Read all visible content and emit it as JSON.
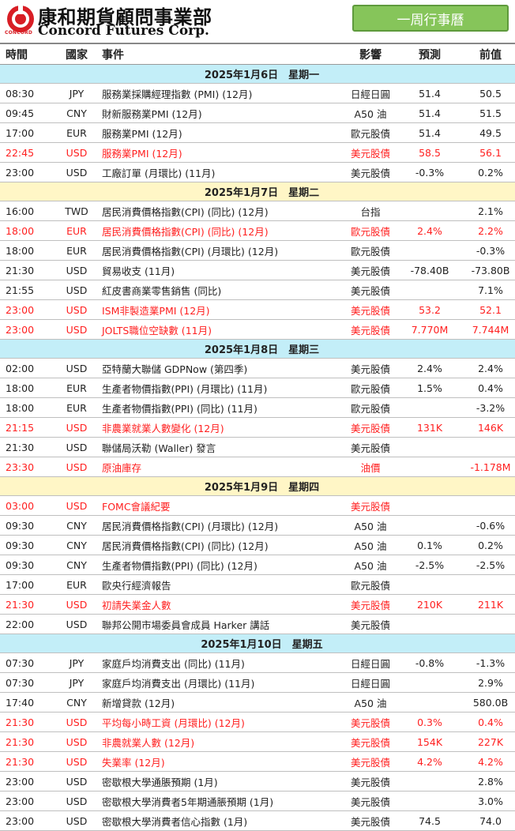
{
  "header": {
    "logo_small": "CONCORD",
    "company_cn": "康和期貨顧問事業部",
    "company_en": "Concord Futures Corp.",
    "weekly_label": "一周行事曆"
  },
  "columns": [
    "時間",
    "國家",
    "事件",
    "影響",
    "預測",
    "前值"
  ],
  "days": [
    {
      "date": "2025年1月6日　星期一",
      "style": "blue",
      "rows": [
        {
          "time": "08:30",
          "country": "JPY",
          "event": "服務業採購經理指數 (PMI) (12月)",
          "impact": "日經日圓",
          "forecast": "51.4",
          "previous": "50.5",
          "highlight": false
        },
        {
          "time": "09:45",
          "country": "CNY",
          "event": "財新服務業PMI (12月)",
          "impact": "A50 油",
          "forecast": "51.4",
          "previous": "51.5",
          "highlight": false
        },
        {
          "time": "17:00",
          "country": "EUR",
          "event": "服務業PMI (12月)",
          "impact": "歐元股債",
          "forecast": "51.4",
          "previous": "49.5",
          "highlight": false
        },
        {
          "time": "22:45",
          "country": "USD",
          "event": "服務業PMI (12月)",
          "impact": "美元股債",
          "forecast": "58.5",
          "previous": "56.1",
          "highlight": true
        },
        {
          "time": "23:00",
          "country": "USD",
          "event": "工廠訂單 (月環比) (11月)",
          "impact": "美元股債",
          "forecast": "-0.3%",
          "previous": "0.2%",
          "highlight": false
        }
      ]
    },
    {
      "date": "2025年1月7日　星期二",
      "style": "yellow",
      "rows": [
        {
          "time": "16:00",
          "country": "TWD",
          "event": "居民消費價格指數(CPI) (同比) (12月)",
          "impact": "台指",
          "forecast": "",
          "previous": "2.1%",
          "highlight": false
        },
        {
          "time": "18:00",
          "country": "EUR",
          "event": "居民消費價格指數(CPI) (同比) (12月)",
          "impact": "歐元股債",
          "forecast": "2.4%",
          "previous": "2.2%",
          "highlight": true
        },
        {
          "time": "18:00",
          "country": "EUR",
          "event": "居民消費價格指數(CPI) (月環比) (12月)",
          "impact": "歐元股債",
          "forecast": "",
          "previous": "-0.3%",
          "highlight": false
        },
        {
          "time": "21:30",
          "country": "USD",
          "event": "貿易收支 (11月)",
          "impact": "美元股債",
          "forecast": "-78.40B",
          "previous": "-73.80B",
          "highlight": false
        },
        {
          "time": "21:55",
          "country": "USD",
          "event": "紅皮書商業零售銷售 (同比)",
          "impact": "美元股債",
          "forecast": "",
          "previous": "7.1%",
          "highlight": false
        },
        {
          "time": "23:00",
          "country": "USD",
          "event": "ISM非製造業PMI (12月)",
          "impact": "美元股債",
          "forecast": "53.2",
          "previous": "52.1",
          "highlight": true
        },
        {
          "time": "23:00",
          "country": "USD",
          "event": "JOLTS職位空缺數 (11月)",
          "impact": "美元股債",
          "forecast": "7.770M",
          "previous": "7.744M",
          "highlight": true
        }
      ]
    },
    {
      "date": "2025年1月8日　星期三",
      "style": "blue",
      "rows": [
        {
          "time": "02:00",
          "country": "USD",
          "event": "亞特蘭大聯儲 GDPNow (第四季)",
          "impact": "美元股債",
          "forecast": "2.4%",
          "previous": "2.4%",
          "highlight": false
        },
        {
          "time": "18:00",
          "country": "EUR",
          "event": "生產者物價指數(PPI) (月環比) (11月)",
          "impact": "歐元股債",
          "forecast": "1.5%",
          "previous": "0.4%",
          "highlight": false
        },
        {
          "time": "18:00",
          "country": "EUR",
          "event": "生產者物價指數(PPI) (同比) (11月)",
          "impact": "歐元股債",
          "forecast": "",
          "previous": "-3.2%",
          "highlight": false
        },
        {
          "time": "21:15",
          "country": "USD",
          "event": "非農業就業人數變化 (12月)",
          "impact": "美元股債",
          "forecast": "131K",
          "previous": "146K",
          "highlight": true
        },
        {
          "time": "21:30",
          "country": "USD",
          "event": "聯儲局沃勒 (Waller) 發言",
          "impact": "美元股債",
          "forecast": "",
          "previous": "",
          "highlight": false
        },
        {
          "time": "23:30",
          "country": "USD",
          "event": "原油庫存",
          "impact": "油價",
          "forecast": "",
          "previous": "-1.178M",
          "highlight": true
        }
      ]
    },
    {
      "date": "2025年1月9日　星期四",
      "style": "yellow",
      "rows": [
        {
          "time": "03:00",
          "country": "USD",
          "event": "FOMC會議紀要",
          "impact": "美元股債",
          "forecast": "",
          "previous": "",
          "highlight": true
        },
        {
          "time": "09:30",
          "country": "CNY",
          "event": "居民消費價格指數(CPI) (月環比) (12月)",
          "impact": "A50 油",
          "forecast": "",
          "previous": "-0.6%",
          "highlight": false
        },
        {
          "time": "09:30",
          "country": "CNY",
          "event": "居民消費價格指數(CPI) (同比) (12月)",
          "impact": "A50 油",
          "forecast": "0.1%",
          "previous": "0.2%",
          "highlight": false
        },
        {
          "time": "09:30",
          "country": "CNY",
          "event": "生產者物價指數(PPI) (同比) (12月)",
          "impact": "A50 油",
          "forecast": "-2.5%",
          "previous": "-2.5%",
          "highlight": false
        },
        {
          "time": "17:00",
          "country": "EUR",
          "event": "歐央行經濟報告",
          "impact": "歐元股債",
          "forecast": "",
          "previous": "",
          "highlight": false
        },
        {
          "time": "21:30",
          "country": "USD",
          "event": "初請失業金人數",
          "impact": "美元股債",
          "forecast": "210K",
          "previous": "211K",
          "highlight": true
        },
        {
          "time": "22:00",
          "country": "USD",
          "event": "聯邦公開市場委員會成員 Harker 講話",
          "impact": "美元股債",
          "forecast": "",
          "previous": "",
          "highlight": false
        }
      ]
    },
    {
      "date": "2025年1月10日　星期五",
      "style": "blue",
      "rows": [
        {
          "time": "07:30",
          "country": "JPY",
          "event": "家庭戶均消費支出 (同比) (11月)",
          "impact": "日經日圓",
          "forecast": "-0.8%",
          "previous": "-1.3%",
          "highlight": false
        },
        {
          "time": "07:30",
          "country": "JPY",
          "event": "家庭戶均消費支出 (月環比) (11月)",
          "impact": "日經日圓",
          "forecast": "",
          "previous": "2.9%",
          "highlight": false
        },
        {
          "time": "17:40",
          "country": "CNY",
          "event": "新增貸款 (12月)",
          "impact": "A50 油",
          "forecast": "",
          "previous": "580.0B",
          "highlight": false
        },
        {
          "time": "21:30",
          "country": "USD",
          "event": "平均每小時工資 (月環比) (12月)",
          "impact": "美元股債",
          "forecast": "0.3%",
          "previous": "0.4%",
          "highlight": true
        },
        {
          "time": "21:30",
          "country": "USD",
          "event": "非農就業人數 (12月)",
          "impact": "美元股債",
          "forecast": "154K",
          "previous": "227K",
          "highlight": true
        },
        {
          "time": "21:30",
          "country": "USD",
          "event": "失業率 (12月)",
          "impact": "美元股債",
          "forecast": "4.2%",
          "previous": "4.2%",
          "highlight": true
        },
        {
          "time": "23:00",
          "country": "USD",
          "event": "密歇根大學通脹預期 (1月)",
          "impact": "美元股債",
          "forecast": "",
          "previous": "2.8%",
          "highlight": false
        },
        {
          "time": "23:00",
          "country": "USD",
          "event": "密歇根大學消費者5年期通脹預期 (1月)",
          "impact": "美元股債",
          "forecast": "",
          "previous": "3.0%",
          "highlight": false
        },
        {
          "time": "23:00",
          "country": "USD",
          "event": "密歇根大學消費者信心指數 (1月)",
          "impact": "美元股債",
          "forecast": "74.5",
          "previous": "74.0",
          "highlight": false
        }
      ]
    }
  ],
  "colors": {
    "brand_red": "#d81e25",
    "highlight_red": "#ff1f1f",
    "date_blue": "#c3eef8",
    "date_yellow": "#fff6c6",
    "button_green": "#86c55a"
  }
}
